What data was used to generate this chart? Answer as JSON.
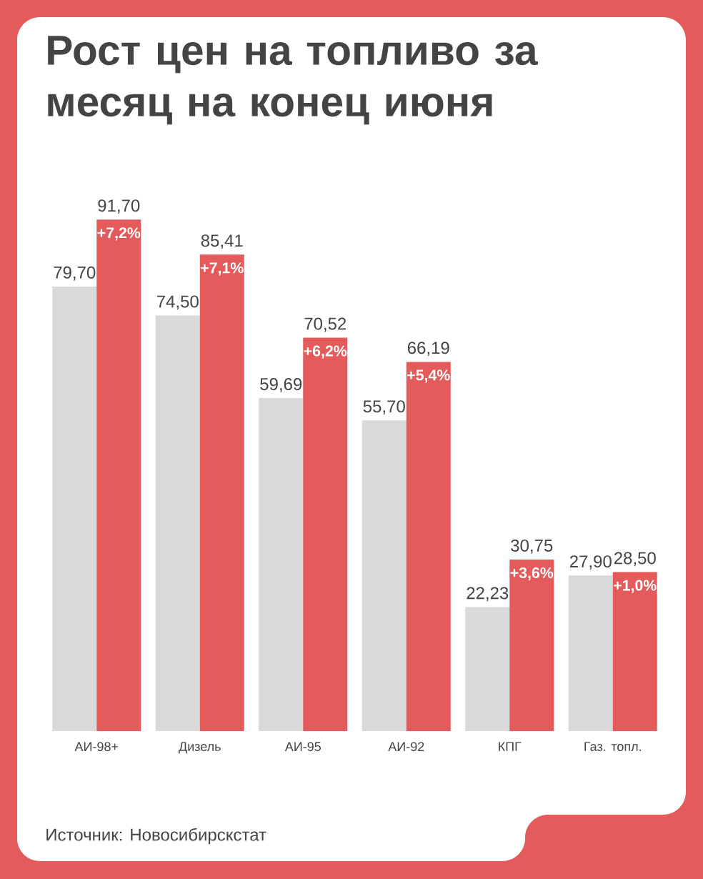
{
  "chart_data": {
    "type": "bar",
    "title": "Рост цен на топливо за месяц на конец июня",
    "categories": [
      "АИ-98+",
      "Дизель",
      "АИ-95",
      "АИ-92",
      "КПГ",
      "Газ. топл."
    ],
    "series": [
      {
        "color": "#d9d9d9",
        "values": [
          79.7,
          74.5,
          59.69,
          55.7,
          22.23,
          27.9
        ],
        "value_labels": [
          "79,70",
          "74,50",
          "59,69",
          "55,70",
          "22,23",
          "27,90"
        ]
      },
      {
        "color": "#e35b5b",
        "values": [
          91.7,
          85.41,
          70.52,
          66.19,
          30.75,
          28.5
        ],
        "value_labels": [
          "91,70",
          "85,41",
          "70,52",
          "66,19",
          "30,75",
          "28,50"
        ]
      }
    ],
    "annotations": [
      {
        "text": "+7,2%",
        "x": "АИ-98+",
        "y": 91.7
      },
      {
        "text": "+7,1%",
        "x": "Дизель",
        "y": 85.41
      },
      {
        "text": "+6,2%",
        "x": "АИ-95",
        "y": 70.52
      },
      {
        "text": "+5,4%",
        "x": "АИ-92",
        "y": 66.19
      },
      {
        "text": "+3,6%",
        "x": "КПГ",
        "y": 30.75
      },
      {
        "text": "+1,0%",
        "x": "Газ. топл.",
        "y": 28.5
      },
      "Источник: Новосибирскстат"
    ]
  }
}
